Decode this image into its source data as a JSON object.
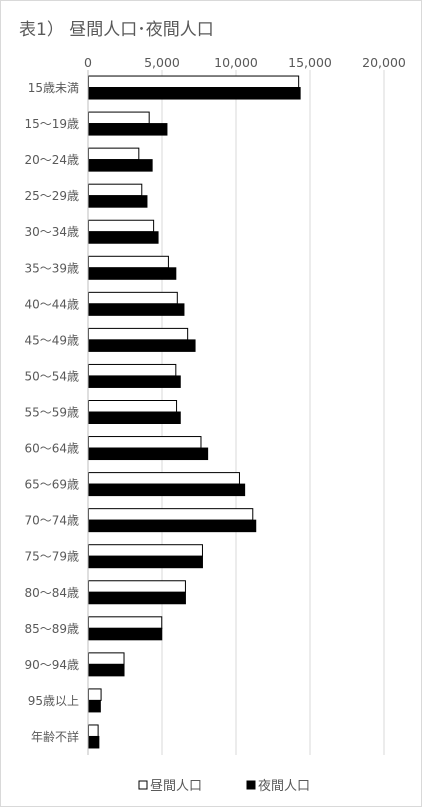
{
  "chart_data": {
    "type": "bar",
    "orientation": "horizontal",
    "title": "表1） 昼間人口･夜間人口",
    "xlabel": "",
    "ylabel": "",
    "xlim": [
      0,
      20000
    ],
    "x_ticks": [
      "0",
      "5,000",
      "10,000",
      "15,000",
      "20,000"
    ],
    "x_tick_values": [
      0,
      5000,
      10000,
      15000,
      20000
    ],
    "axis_position": "top",
    "grid": true,
    "legend_position": "bottom",
    "categories": [
      "15歳未満",
      "15～19歳",
      "20～24歳",
      "25～29歳",
      "30～34歳",
      "35～39歳",
      "40～44歳",
      "45～49歳",
      "50～54歳",
      "55～59歳",
      "60～64歳",
      "65～69歳",
      "70～74歳",
      "75～79歳",
      "80～84歳",
      "85～89歳",
      "90～94歳",
      "95歳以上",
      "年齢不詳"
    ],
    "series": [
      {
        "name": "昼間人口",
        "fill": "#ffffff",
        "stroke": "#000000",
        "values": [
          14200,
          4100,
          3400,
          3600,
          4400,
          5400,
          6000,
          6700,
          5900,
          5950,
          7600,
          10200,
          11100,
          7700,
          6550,
          4950,
          2400,
          850,
          650
        ]
      },
      {
        "name": "夜間人口",
        "fill": "#000000",
        "stroke": "#000000",
        "values": [
          14300,
          5300,
          4300,
          3950,
          4700,
          5900,
          6450,
          7200,
          6200,
          6200,
          8050,
          10550,
          11300,
          7700,
          6550,
          4950,
          2400,
          800,
          700
        ]
      }
    ]
  }
}
